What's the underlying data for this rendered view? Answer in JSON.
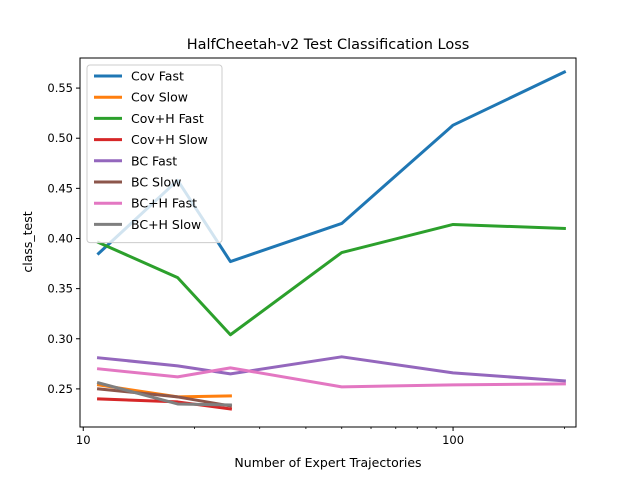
{
  "chart_data": {
    "type": "line",
    "title": "HalfCheetah-v2 Test Classification Loss",
    "xlabel": "Number of Expert Trajectories",
    "ylabel": "class_test",
    "xscale": "log",
    "xlim": [
      9.8,
      215
    ],
    "ylim": [
      0.212,
      0.58
    ],
    "xticks": [
      {
        "value": 10,
        "label": "10"
      },
      {
        "value": 100,
        "label": "100"
      }
    ],
    "yticks": [
      {
        "value": 0.25,
        "label": "0.25"
      },
      {
        "value": 0.3,
        "label": "0.30"
      },
      {
        "value": 0.35,
        "label": "0.35"
      },
      {
        "value": 0.4,
        "label": "0.40"
      },
      {
        "value": 0.45,
        "label": "0.45"
      },
      {
        "value": 0.5,
        "label": "0.50"
      },
      {
        "value": 0.55,
        "label": "0.55"
      }
    ],
    "legend_position": "upper-left",
    "grid": false,
    "series": [
      {
        "name": "Cov Fast",
        "color": "#1f77b4",
        "x": [
          11,
          18,
          25,
          50,
          100,
          200
        ],
        "y": [
          0.385,
          0.458,
          0.377,
          0.415,
          0.513,
          0.566
        ]
      },
      {
        "name": "Cov Slow",
        "color": "#ff7f0e",
        "x": [
          11,
          18,
          25
        ],
        "y": [
          0.254,
          0.242,
          0.243
        ]
      },
      {
        "name": "Cov+H Fast",
        "color": "#2ca02c",
        "x": [
          11,
          18,
          25,
          50,
          100,
          200
        ],
        "y": [
          0.396,
          0.361,
          0.304,
          0.386,
          0.414,
          0.41
        ]
      },
      {
        "name": "Cov+H Slow",
        "color": "#d62728",
        "x": [
          11,
          18,
          25
        ],
        "y": [
          0.24,
          0.237,
          0.23
        ]
      },
      {
        "name": "BC Fast",
        "color": "#9467bd",
        "x": [
          11,
          18,
          25,
          50,
          100,
          200
        ],
        "y": [
          0.281,
          0.273,
          0.265,
          0.282,
          0.266,
          0.258
        ]
      },
      {
        "name": "BC Slow",
        "color": "#8c564b",
        "x": [
          11,
          18,
          25
        ],
        "y": [
          0.25,
          0.242,
          0.233
        ]
      },
      {
        "name": "BC+H Fast",
        "color": "#e377c2",
        "x": [
          11,
          18,
          25,
          50,
          100,
          200
        ],
        "y": [
          0.27,
          0.262,
          0.271,
          0.252,
          0.254,
          0.255
        ]
      },
      {
        "name": "BC+H Slow",
        "color": "#7f7f7f",
        "x": [
          11,
          18,
          25
        ],
        "y": [
          0.256,
          0.235,
          0.234
        ]
      }
    ]
  }
}
